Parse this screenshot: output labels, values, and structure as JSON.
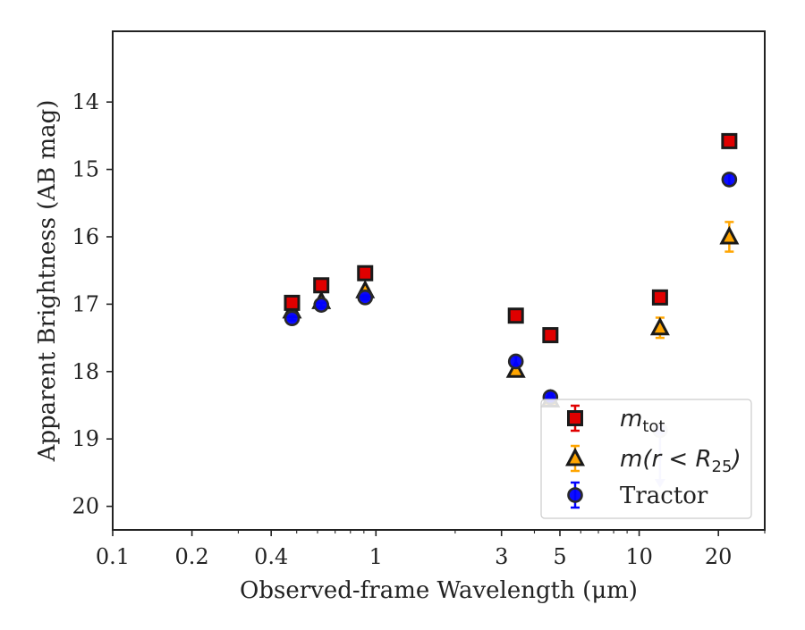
{
  "chart_data": {
    "type": "scatter",
    "xlabel": "Observed-frame Wavelength (μm)",
    "ylabel": "Apparent Brightness (AB mag)",
    "xscale": "log",
    "xlim": [
      0.1,
      30
    ],
    "ylim": [
      20.35,
      12.95
    ],
    "y_inverted": true,
    "grid": false,
    "legend_position": "lower-right",
    "x_ticks": [
      {
        "value": 0.1,
        "label": "0.1"
      },
      {
        "value": 0.2,
        "label": "0.2"
      },
      {
        "value": 0.4,
        "label": "0.4"
      },
      {
        "value": 1,
        "label": "1"
      },
      {
        "value": 3,
        "label": "3"
      },
      {
        "value": 5,
        "label": "5"
      },
      {
        "value": 10,
        "label": "10"
      },
      {
        "value": 20,
        "label": "20"
      }
    ],
    "y_ticks": [
      {
        "value": 14,
        "label": "14"
      },
      {
        "value": 15,
        "label": "15"
      },
      {
        "value": 16,
        "label": "16"
      },
      {
        "value": 17,
        "label": "17"
      },
      {
        "value": 18,
        "label": "18"
      },
      {
        "value": 19,
        "label": "19"
      },
      {
        "value": 20,
        "label": "20"
      }
    ],
    "series": [
      {
        "name": "m_tot",
        "legend_main": "m",
        "legend_sub": "tot",
        "marker": "square",
        "face_color": "#e00000",
        "edge_color": "#1a1a1a",
        "error_color": "#e00000",
        "points": [
          {
            "x": 0.48,
            "y": 16.98,
            "err": 0.03
          },
          {
            "x": 0.62,
            "y": 16.72,
            "err": 0.03
          },
          {
            "x": 0.91,
            "y": 16.54,
            "err": 0.03
          },
          {
            "x": 3.4,
            "y": 17.17,
            "err": 0.03
          },
          {
            "x": 4.6,
            "y": 17.46,
            "err": 0.03
          },
          {
            "x": 12.0,
            "y": 16.9,
            "err": 0.03
          },
          {
            "x": 22.0,
            "y": 14.58,
            "err": 0.03
          }
        ]
      },
      {
        "name": "m(r < R25)",
        "legend_main": "m(r < R",
        "legend_sub": "25",
        "legend_tail": ")",
        "marker": "triangle",
        "face_color": "#ffa500",
        "edge_color": "#1a1a1a",
        "error_color": "#ffa500",
        "points": [
          {
            "x": 0.48,
            "y": 17.1,
            "err": 0.03
          },
          {
            "x": 0.62,
            "y": 16.96,
            "err": 0.03
          },
          {
            "x": 0.91,
            "y": 16.8,
            "err": 0.03
          },
          {
            "x": 3.4,
            "y": 17.98,
            "err": 0.05
          },
          {
            "x": 4.6,
            "y": 18.42,
            "err": 0.05
          },
          {
            "x": 12.0,
            "y": 17.35,
            "err": 0.15
          },
          {
            "x": 22.0,
            "y": 16.0,
            "err": 0.22
          }
        ]
      },
      {
        "name": "Tractor",
        "legend_main": "Tractor",
        "marker": "circle",
        "face_color": "#0000ff",
        "edge_color": "#2a2a2a",
        "error_color": "#0000ff",
        "points": [
          {
            "x": 0.48,
            "y": 17.21,
            "err": 0.03
          },
          {
            "x": 0.62,
            "y": 17.01,
            "err": 0.03
          },
          {
            "x": 0.91,
            "y": 16.9,
            "err": 0.03
          },
          {
            "x": 3.4,
            "y": 17.85,
            "err": 0.08
          },
          {
            "x": 4.6,
            "y": 18.38,
            "err": 0.06
          },
          {
            "x": 22.0,
            "y": 15.15,
            "err": 0.08
          }
        ],
        "upper_limits": [
          {
            "x": 12.0,
            "y": 18.87,
            "to": 19.7
          }
        ]
      }
    ]
  }
}
